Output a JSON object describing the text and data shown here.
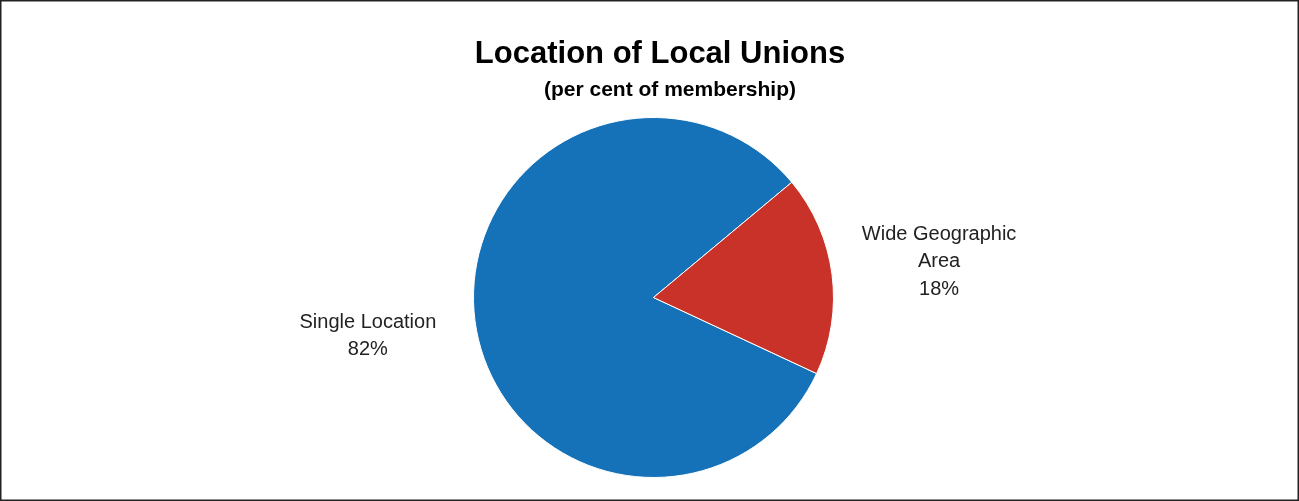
{
  "chart_data": {
    "type": "pie",
    "title": "Location of Local Unions",
    "subtitle": "(per cent of membership)",
    "categories": [
      "Single Location",
      "Wide Geographic Area"
    ],
    "values": [
      82,
      18
    ],
    "value_labels": [
      "82%",
      "18%"
    ],
    "colors": [
      "#1572b9",
      "#c93228"
    ]
  }
}
